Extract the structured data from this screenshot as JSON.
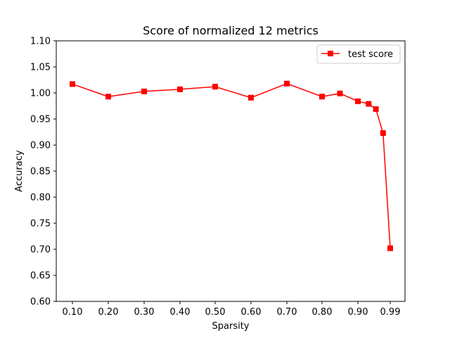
{
  "chart_data": {
    "type": "line",
    "title": "Score of normalized 12 metrics",
    "xlabel": "Sparsity",
    "ylabel": "Accuracy",
    "ylim": [
      0.6,
      1.1
    ],
    "yticks": [
      "0.60",
      "0.65",
      "0.70",
      "0.75",
      "0.80",
      "0.85",
      "0.90",
      "0.95",
      "1.00",
      "1.05",
      "1.10"
    ],
    "xticks": [
      "0.10",
      "0.20",
      "0.30",
      "0.40",
      "0.50",
      "0.60",
      "0.70",
      "0.80",
      "0.90",
      "0.99"
    ],
    "x": [
      0.1,
      0.2,
      0.3,
      0.4,
      0.5,
      0.6,
      0.7,
      0.8,
      0.85,
      0.9,
      0.93,
      0.95,
      0.97,
      0.99
    ],
    "series": [
      {
        "name": "test score",
        "color": "#ff0000",
        "marker": "square",
        "values": [
          1.017,
          0.993,
          1.003,
          1.007,
          1.012,
          0.991,
          1.018,
          0.993,
          0.999,
          0.984,
          0.979,
          0.969,
          0.923,
          0.702
        ]
      }
    ],
    "legend": "top-right",
    "grid": false
  }
}
